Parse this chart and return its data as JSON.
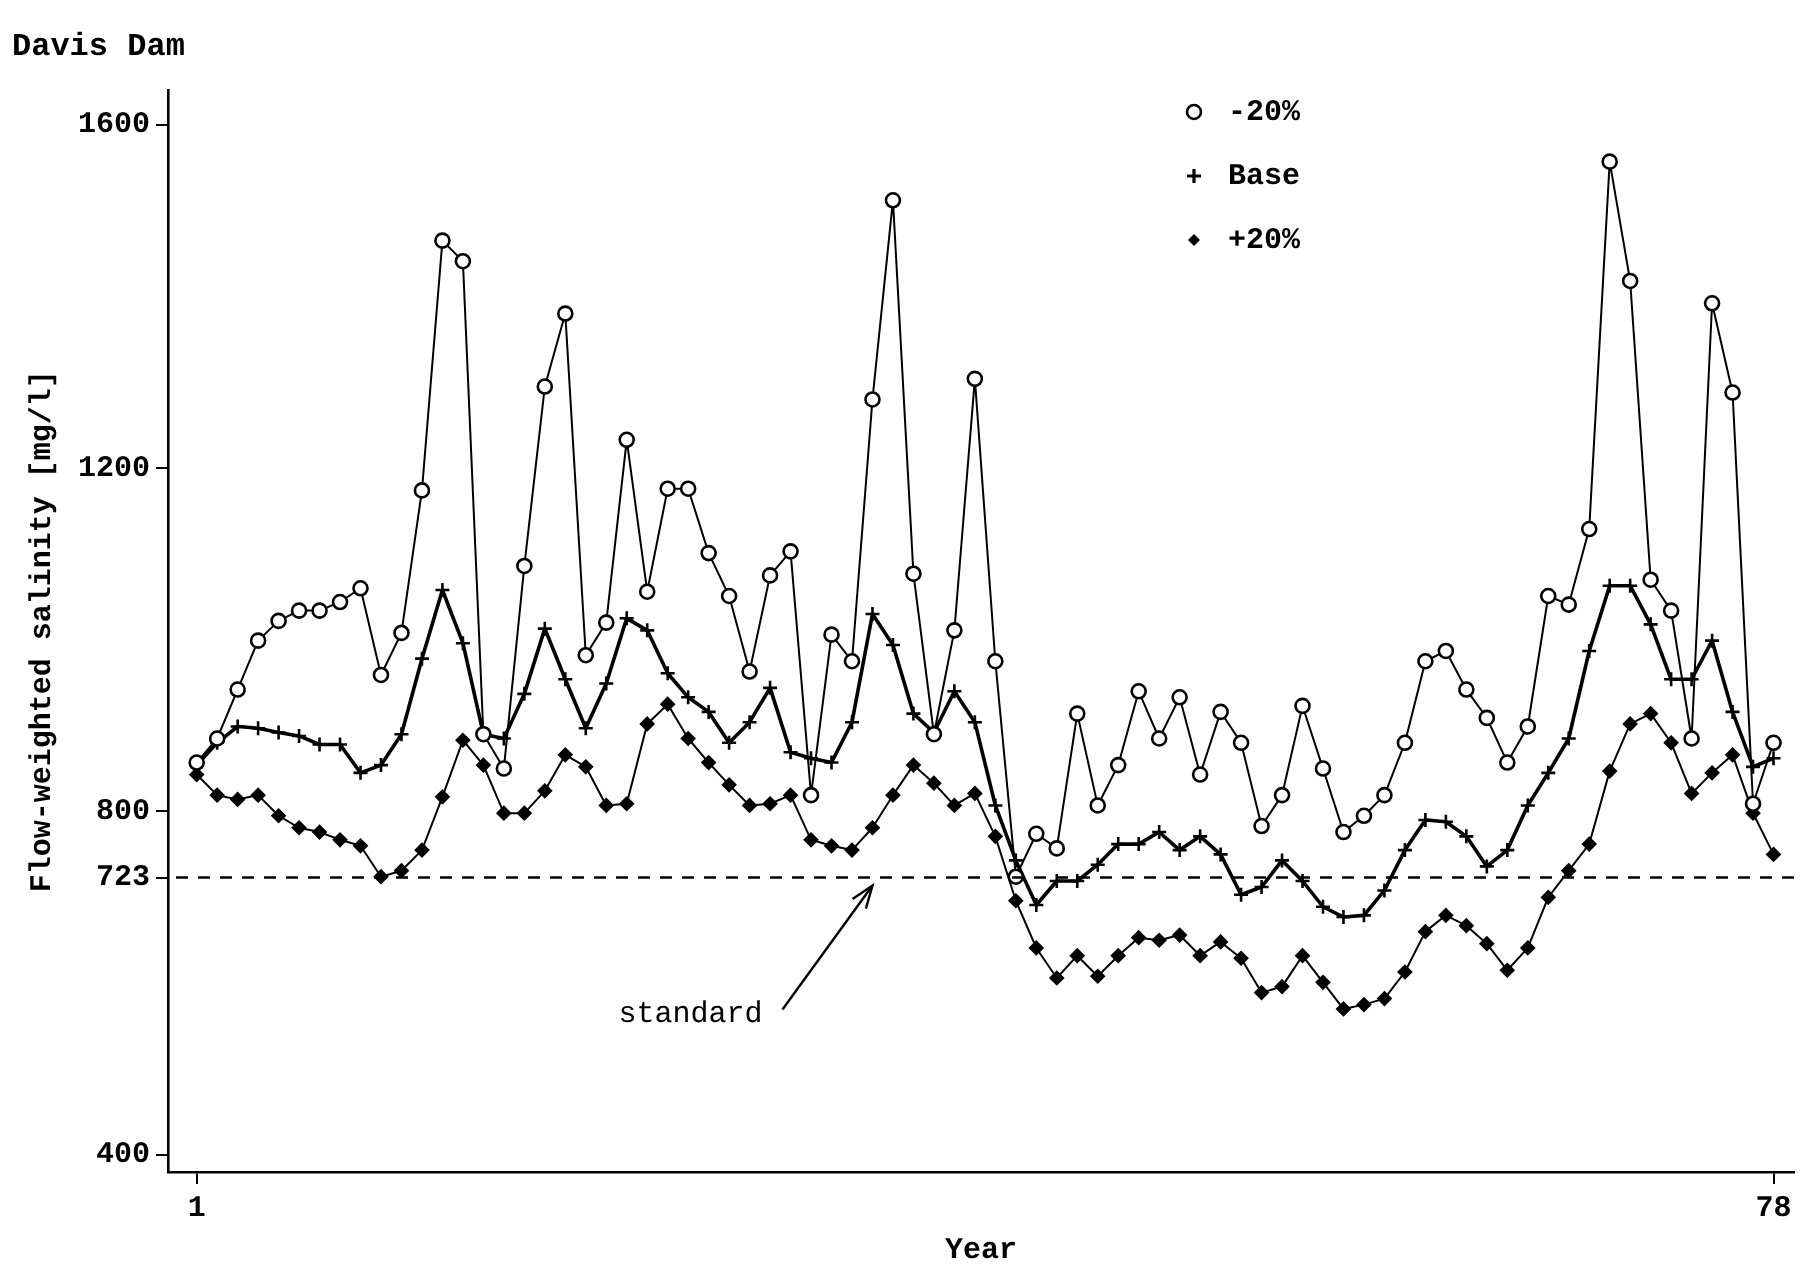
{
  "chart_data": {
    "type": "line",
    "title": "Davis Dam",
    "xlabel": "Year",
    "ylabel": "Flow-weighted salinity [mg/l]",
    "x": [
      1,
      2,
      3,
      4,
      5,
      6,
      7,
      8,
      9,
      10,
      11,
      12,
      13,
      14,
      15,
      16,
      17,
      18,
      19,
      20,
      21,
      22,
      23,
      24,
      25,
      26,
      27,
      28,
      29,
      30,
      31,
      32,
      33,
      34,
      35,
      36,
      37,
      38,
      39,
      40,
      41,
      42,
      43,
      44,
      45,
      46,
      47,
      48,
      49,
      50,
      51,
      52,
      53,
      54,
      55,
      56,
      57,
      58,
      59,
      60,
      61,
      62,
      63,
      64,
      65,
      66,
      67,
      68,
      69,
      70,
      71,
      72,
      73,
      74,
      75,
      76,
      77,
      78
    ],
    "series": [
      {
        "name": "-20%",
        "color": "#000000",
        "marker": "circle",
        "values": [
          857,
          885,
          942,
          999,
          1022,
          1034,
          1034,
          1044,
          1060,
          959,
          1008,
          1174,
          1465,
          1441,
          890,
          850,
          1086,
          1295,
          1380,
          982,
          1020,
          1233,
          1056,
          1176,
          1176,
          1101,
          1051,
          963,
          1075,
          1103,
          819,
          1006,
          975,
          1280,
          1512,
          1077,
          890,
          1011,
          1304,
          975,
          724,
          774,
          757,
          914,
          807,
          854,
          940,
          885,
          933,
          843,
          916,
          880,
          783,
          819,
          923,
          850,
          776,
          795,
          819,
          880,
          975,
          987,
          942,
          909,
          857,
          899,
          1051,
          1041,
          1129,
          1557,
          1418,
          1070,
          1034,
          885,
          1392,
          1288,
          809,
          880
        ]
      },
      {
        "name": "Base",
        "color": "#000000",
        "marker": "cross",
        "values": [
          854,
          880,
          899,
          897,
          892,
          888,
          878,
          878,
          845,
          854,
          890,
          978,
          1058,
          996,
          890,
          885,
          937,
          1013,
          954,
          897,
          949,
          1025,
          1011,
          961,
          933,
          916,
          880,
          904,
          944,
          869,
          862,
          857,
          904,
          1030,
          994,
          914,
          892,
          940,
          904,
          807,
          743,
          691,
          719,
          719,
          738,
          762,
          762,
          776,
          755,
          771,
          750,
          703,
          712,
          743,
          719,
          689,
          677,
          679,
          708,
          755,
          790,
          788,
          771,
          736,
          755,
          807,
          845,
          885,
          987,
          1063,
          1063,
          1018,
          954,
          954,
          999,
          916,
          852,
          862
        ]
      },
      {
        "name": "+20%",
        "color": "#000000",
        "marker": "diamond",
        "values": [
          843,
          819,
          814,
          819,
          795,
          781,
          776,
          767,
          760,
          724,
          731,
          755,
          817,
          883,
          854,
          798,
          798,
          824,
          866,
          852,
          807,
          809,
          902,
          925,
          885,
          857,
          831,
          807,
          809,
          819,
          767,
          760,
          755,
          781,
          819,
          854,
          833,
          807,
          821,
          771,
          696,
          641,
          606,
          632,
          608,
          632,
          653,
          650,
          656,
          632,
          648,
          629,
          589,
          596,
          632,
          601,
          570,
          575,
          582,
          613,
          660,
          679,
          667,
          646,
          615,
          641,
          700,
          731,
          762,
          847,
          902,
          914,
          880,
          821,
          845,
          866,
          798,
          750
        ]
      }
    ],
    "xlim": [
      -0.4,
      79
    ],
    "xticks": [
      1,
      78
    ],
    "ylim": [
      380,
      1640
    ],
    "yticks": [
      400,
      723,
      800,
      1200,
      1600
    ],
    "ref_lines": [
      {
        "axis": "y",
        "value": 723,
        "line_style": "dashed"
      }
    ],
    "annotations": [
      {
        "text": "standard",
        "x": 34,
        "y": 723
      }
    ],
    "legend": "top right"
  }
}
